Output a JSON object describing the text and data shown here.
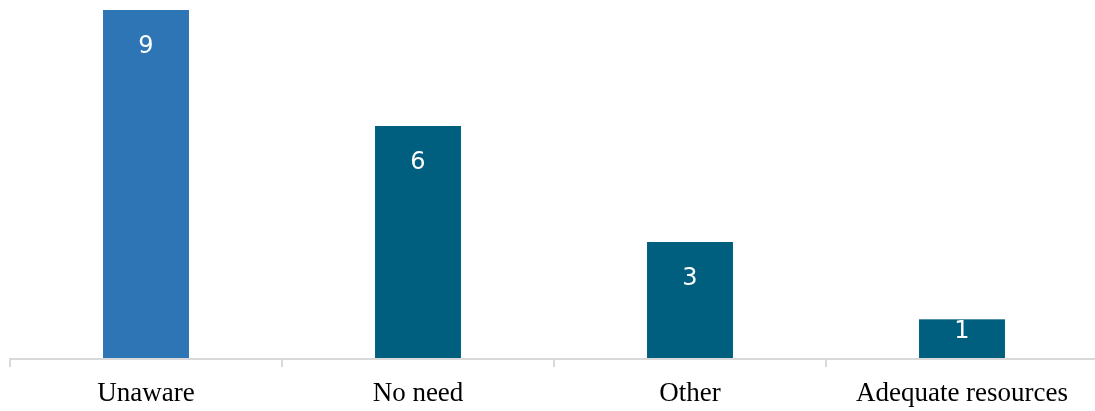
{
  "chart_data": {
    "type": "bar",
    "categories": [
      "Unaware",
      "No need",
      "Other",
      "Adequate resources"
    ],
    "values": [
      9,
      6,
      3,
      1
    ],
    "colors": [
      "#2e75b6",
      "#005f7f",
      "#005f7f",
      "#005f7f"
    ],
    "data_labels": true
  }
}
